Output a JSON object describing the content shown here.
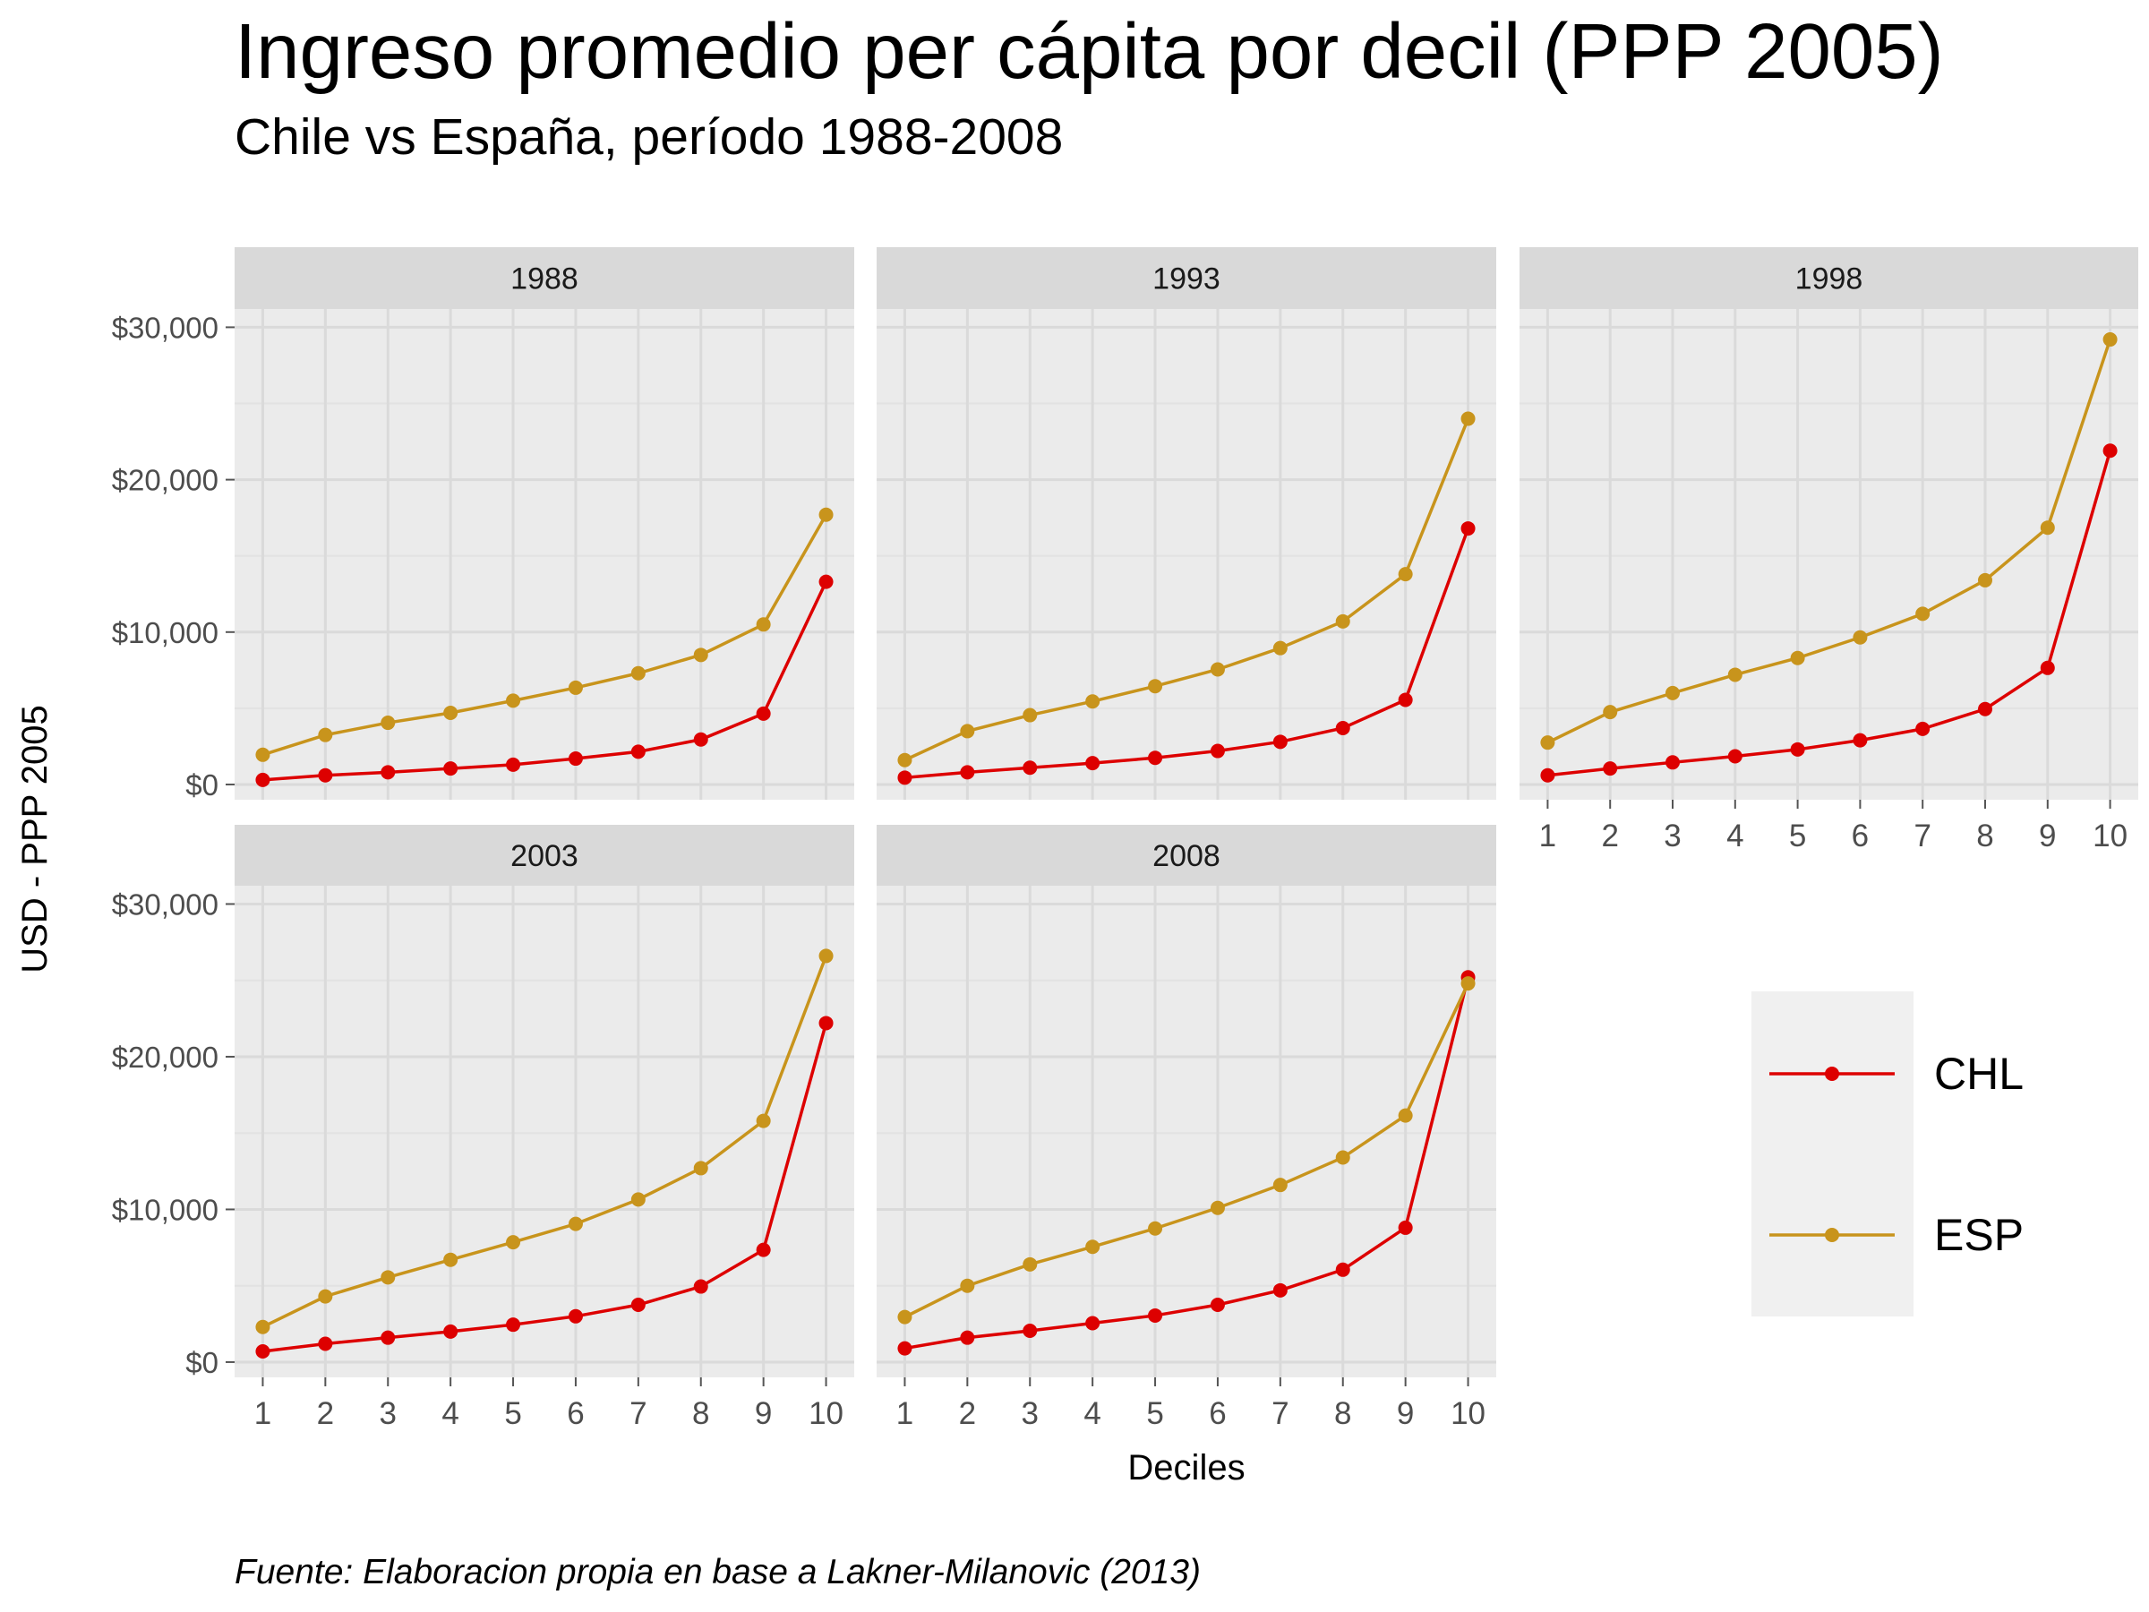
{
  "title": "Ingreso promedio per cápita por decil (PPP 2005)",
  "subtitle": "Chile vs España, período 1988-2008",
  "caption": "Fuente: Elaboracion propia en base a Lakner-Milanovic (2013)",
  "chart_data": {
    "type": "line",
    "facet_by": "year",
    "xlabel": "Deciles",
    "ylabel": "USD - PPP 2005",
    "x": [
      1,
      2,
      3,
      4,
      5,
      6,
      7,
      8,
      9,
      10
    ],
    "x_ticks": [
      "1",
      "2",
      "3",
      "4",
      "5",
      "6",
      "7",
      "8",
      "9",
      "10"
    ],
    "ylim": [
      -1000,
      30000
    ],
    "y_ticks": [
      0,
      10000,
      20000,
      30000
    ],
    "y_tick_labels": [
      "$0",
      "$10,000",
      "$20,000",
      "$30,000"
    ],
    "grid": true,
    "legend": {
      "position": "right",
      "entries": [
        {
          "name": "CHL",
          "color": "#dd0000"
        },
        {
          "name": "ESP",
          "color": "#c8941c"
        }
      ]
    },
    "facets": [
      {
        "label": "1988",
        "series": [
          {
            "name": "CHL",
            "values": [
              300,
              600,
              800,
              1050,
              1300,
              1700,
              2150,
              2950,
              4650,
              13300
            ]
          },
          {
            "name": "ESP",
            "values": [
              1950,
              3250,
              4050,
              4700,
              5500,
              6350,
              7300,
              8500,
              10500,
              17700
            ]
          }
        ]
      },
      {
        "label": "1993",
        "series": [
          {
            "name": "CHL",
            "values": [
              450,
              800,
              1100,
              1400,
              1750,
              2200,
              2800,
              3700,
              5550,
              16800
            ]
          },
          {
            "name": "ESP",
            "values": [
              1600,
              3500,
              4550,
              5450,
              6450,
              7550,
              8950,
              10700,
              13800,
              24000
            ]
          }
        ]
      },
      {
        "label": "1998",
        "series": [
          {
            "name": "CHL",
            "values": [
              600,
              1050,
              1450,
              1850,
              2300,
              2900,
              3650,
              4950,
              7650,
              21900
            ]
          },
          {
            "name": "ESP",
            "values": [
              2750,
              4750,
              6000,
              7200,
              8300,
              9650,
              11200,
              13400,
              16850,
              29200
            ]
          }
        ]
      },
      {
        "label": "2003",
        "series": [
          {
            "name": "CHL",
            "values": [
              700,
              1200,
              1600,
              2000,
              2450,
              3000,
              3750,
              4950,
              7350,
              22200
            ]
          },
          {
            "name": "ESP",
            "values": [
              2300,
              4300,
              5550,
              6700,
              7850,
              9050,
              10650,
              12700,
              15800,
              26600
            ]
          }
        ]
      },
      {
        "label": "2008",
        "series": [
          {
            "name": "CHL",
            "values": [
              900,
              1600,
              2050,
              2550,
              3050,
              3750,
              4700,
              6050,
              8800,
              25200
            ]
          },
          {
            "name": "ESP",
            "values": [
              2950,
              5000,
              6400,
              7550,
              8750,
              10100,
              11600,
              13400,
              16150,
              24800
            ]
          }
        ]
      }
    ]
  }
}
